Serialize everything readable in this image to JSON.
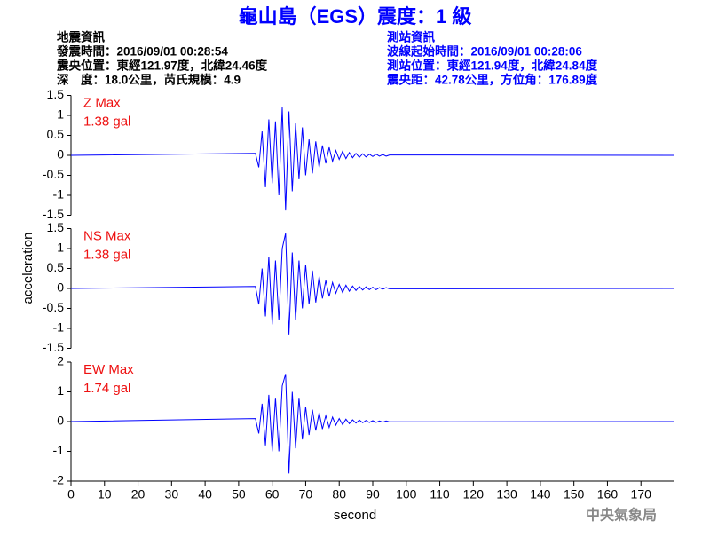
{
  "header": {
    "title": "龜山島（EGS）震度：1 級",
    "left": [
      "地震資訊",
      "發震時間：2016/09/01 00:28:54",
      "震央位置：東經121.97度，北緯24.46度",
      "深　度：18.0公里，芮氏規模：4.9"
    ],
    "right": [
      "測站資訊",
      "波線起始時間：2016/09/01 00:28:06",
      "測站位置：東經121.94度，北緯24.84度",
      "震央距：42.78公里，方位角：176.89度"
    ]
  },
  "footer": "中央氣象局",
  "chart_data": [
    {
      "type": "line",
      "annotation": [
        "Z Max",
        "1.38 gal"
      ],
      "xlim": [
        0,
        180
      ],
      "ylim": [
        -1.5,
        1.5
      ],
      "yticks": [
        1.5,
        1,
        0.5,
        0,
        -0.5,
        -1,
        -1.5
      ],
      "series": [
        {
          "color": "#0000ff",
          "x": [
            0,
            55,
            56,
            57,
            58,
            59,
            60,
            61,
            62,
            63,
            64,
            65,
            66,
            67,
            68,
            69,
            70,
            71,
            72,
            73,
            74,
            75,
            76,
            77,
            78,
            79,
            80,
            81,
            82,
            83,
            84,
            85,
            86,
            87,
            88,
            89,
            90,
            91,
            92,
            93,
            94,
            95,
            180
          ],
          "values": [
            0,
            0.05,
            -0.3,
            0.6,
            -0.8,
            0.9,
            -0.7,
            0.85,
            -1.0,
            1.2,
            -1.38,
            1.1,
            -0.9,
            0.8,
            -0.6,
            0.7,
            -0.5,
            0.4,
            -0.45,
            0.35,
            -0.3,
            0.25,
            -0.2,
            0.2,
            -0.15,
            0.12,
            -0.1,
            0.1,
            -0.08,
            0.07,
            -0.06,
            0.05,
            -0.05,
            0.04,
            -0.04,
            0.03,
            -0.03,
            0.03,
            -0.02,
            0.02,
            -0.02,
            0.01,
            0
          ]
        }
      ]
    },
    {
      "type": "line",
      "annotation": [
        "NS Max",
        "1.38 gal"
      ],
      "xlim": [
        0,
        180
      ],
      "ylim": [
        -1.5,
        1.5
      ],
      "yticks": [
        1.5,
        1,
        0.5,
        0,
        -0.5,
        -1,
        -1.5
      ],
      "ylabel": "acceleration",
      "series": [
        {
          "color": "#0000ff",
          "x": [
            0,
            55,
            56,
            57,
            58,
            59,
            60,
            61,
            62,
            63,
            64,
            65,
            66,
            67,
            68,
            69,
            70,
            71,
            72,
            73,
            74,
            75,
            76,
            77,
            78,
            79,
            80,
            81,
            82,
            83,
            84,
            85,
            86,
            87,
            88,
            89,
            90,
            91,
            92,
            93,
            94,
            95,
            180
          ],
          "values": [
            0,
            0.05,
            -0.4,
            0.5,
            -0.7,
            0.8,
            -0.9,
            0.7,
            -0.8,
            1.0,
            1.38,
            -1.15,
            0.9,
            -0.8,
            0.7,
            -0.5,
            0.6,
            -0.4,
            0.45,
            -0.35,
            0.3,
            -0.25,
            0.2,
            -0.2,
            0.15,
            -0.12,
            0.1,
            -0.1,
            0.08,
            -0.07,
            0.06,
            -0.05,
            0.05,
            -0.04,
            0.04,
            -0.03,
            0.03,
            -0.03,
            0.02,
            -0.02,
            0.02,
            -0.01,
            0
          ]
        }
      ]
    },
    {
      "type": "line",
      "annotation": [
        "EW Max",
        "1.74 gal"
      ],
      "xlim": [
        0,
        180
      ],
      "ylim": [
        -2,
        2
      ],
      "yticks": [
        2,
        1,
        0,
        -1,
        -2
      ],
      "xlabel": "second",
      "xticks": [
        0,
        10,
        20,
        30,
        40,
        50,
        60,
        70,
        80,
        90,
        100,
        110,
        120,
        130,
        140,
        150,
        160,
        170
      ],
      "series": [
        {
          "color": "#0000ff",
          "x": [
            0,
            55,
            56,
            57,
            58,
            59,
            60,
            61,
            62,
            63,
            64,
            65,
            66,
            67,
            68,
            69,
            70,
            71,
            72,
            73,
            74,
            75,
            76,
            77,
            78,
            79,
            80,
            81,
            82,
            83,
            84,
            85,
            86,
            87,
            88,
            89,
            90,
            91,
            92,
            93,
            94,
            95,
            180
          ],
          "values": [
            0,
            0.1,
            -0.4,
            0.6,
            -0.8,
            0.9,
            -1.0,
            0.8,
            -1.0,
            1.2,
            1.6,
            -1.74,
            1.0,
            -0.9,
            0.8,
            -0.6,
            0.5,
            -0.45,
            0.4,
            -0.3,
            0.3,
            -0.25,
            0.2,
            -0.2,
            0.15,
            -0.12,
            0.1,
            -0.1,
            0.08,
            -0.07,
            0.06,
            -0.05,
            0.05,
            -0.04,
            0.04,
            -0.03,
            0.03,
            -0.03,
            0.02,
            -0.02,
            0.02,
            -0.01,
            0
          ]
        }
      ]
    }
  ]
}
